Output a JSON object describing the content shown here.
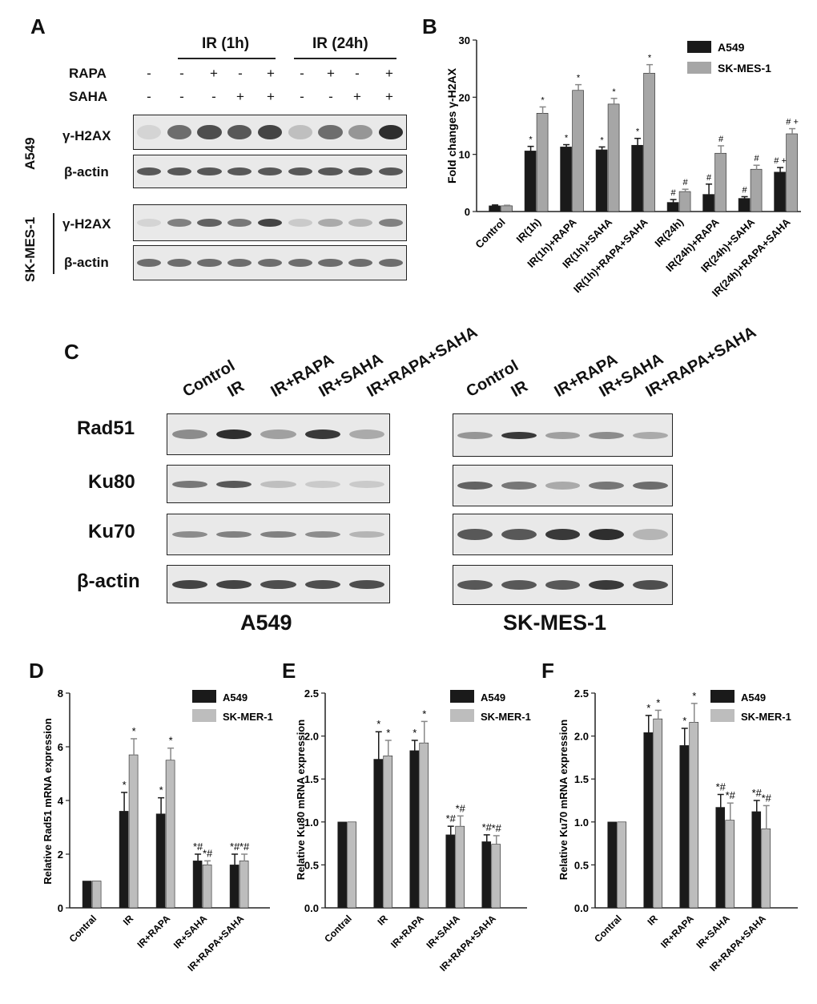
{
  "panel_letters": {
    "A": "A",
    "B": "B",
    "C": "C",
    "D": "D",
    "E": "E",
    "F": "F"
  },
  "panelA": {
    "ir1": "IR (1h)",
    "ir24": "IR (24h)",
    "rapa_label": "RAPA",
    "saha_label": "SAHA",
    "rapa": [
      "-",
      "-",
      "+",
      "-",
      "+",
      "-",
      "+",
      "-",
      "+"
    ],
    "saha": [
      "-",
      "-",
      "-",
      "+",
      "+",
      "-",
      "-",
      "+",
      "+"
    ],
    "cell_a549": "A549",
    "cell_skmes": "SK-MES-1",
    "gh2ax": "γ-H2AX",
    "bactin": "β-actin"
  },
  "panelC": {
    "labels": [
      "Control",
      "IR",
      "IR+RAPA",
      "IR+SAHA",
      "IR+RAPA+SAHA"
    ],
    "rows": [
      "Rad51",
      "Ku80",
      "Ku70",
      "β-actin"
    ],
    "cell_a549": "A549",
    "cell_skmes": "SK-MES-1"
  },
  "chart_data": [
    {
      "type": "bar",
      "categories": [
        "Control",
        "IR(1h)",
        "IR(1h)+RAPA",
        "IR(1h)+SAHA",
        "IR(1h)+RAPA+SAHA",
        "IR(24h)",
        "IR(24h)+RAPA",
        "IR(24h)+SAHA",
        "IR(24h)+RAPA+SAHA"
      ],
      "series": [
        {
          "name": "A549",
          "values": [
            1,
            10.6,
            11.3,
            10.8,
            11.6,
            1.6,
            3.0,
            2.3,
            6.9
          ],
          "errors": [
            0.15,
            0.8,
            0.4,
            0.5,
            1.2,
            0.5,
            1.8,
            0.3,
            0.8
          ],
          "color": "#1a1a1a",
          "annot": [
            "",
            "*",
            "*",
            "*",
            "*",
            "#",
            "#",
            "#",
            "# +"
          ]
        },
        {
          "name": "SK-MES-1",
          "values": [
            1,
            17.2,
            21.2,
            18.8,
            24.2,
            3.5,
            10.2,
            7.4,
            13.6
          ],
          "errors": [
            0.1,
            1.1,
            1.0,
            1.0,
            1.5,
            0.4,
            1.3,
            0.7,
            0.9
          ],
          "color": "#a6a6a6",
          "annot": [
            "",
            "*",
            "*",
            "*",
            "*",
            "#",
            "#",
            "#",
            "# +"
          ]
        }
      ],
      "ylabel": "Fold changes γ-H2AX",
      "ylim": [
        0,
        30
      ],
      "yticks": [
        0,
        10,
        20,
        30
      ]
    },
    {
      "type": "bar",
      "categories": [
        "Contral",
        "IR",
        "IR+RAPA",
        "IR+SAHA",
        "IR+RAPA+SAHA"
      ],
      "series": [
        {
          "name": "A549",
          "values": [
            1.0,
            3.6,
            3.5,
            1.75,
            1.6
          ],
          "errors": [
            0,
            0.7,
            0.6,
            0.25,
            0.4
          ],
          "color": "#1a1a1a",
          "annot": [
            "",
            "*",
            "*",
            "*#",
            "*#"
          ]
        },
        {
          "name": "SK-MER-1",
          "values": [
            1.0,
            5.7,
            5.5,
            1.6,
            1.75
          ],
          "errors": [
            0,
            0.6,
            0.45,
            0.15,
            0.25
          ],
          "color": "#bdbdbd",
          "annot": [
            "",
            "*",
            "*",
            "*#",
            "*#"
          ]
        }
      ],
      "ylabel": "Relative Rad51 mRNA expression",
      "ylim": [
        0,
        8
      ],
      "yticks": [
        0,
        2,
        4,
        6,
        8
      ]
    },
    {
      "type": "bar",
      "categories": [
        "Contral",
        "IR",
        "IR+RAPA",
        "IR+SAHA",
        "IR+RAPA+SAHA"
      ],
      "series": [
        {
          "name": "A549",
          "values": [
            1.0,
            1.73,
            1.83,
            0.85,
            0.77
          ],
          "errors": [
            0,
            0.32,
            0.12,
            0.1,
            0.08
          ],
          "color": "#1a1a1a",
          "annot": [
            "",
            "*",
            "*",
            "*#",
            "*#"
          ]
        },
        {
          "name": "SK-MER-1",
          "values": [
            1.0,
            1.77,
            1.92,
            0.95,
            0.74
          ],
          "errors": [
            0,
            0.18,
            0.25,
            0.12,
            0.1
          ],
          "color": "#bdbdbd",
          "annot": [
            "",
            "*",
            "*",
            "*#",
            "*#"
          ]
        }
      ],
      "ylabel": "Relative Ku80 mRNA expression",
      "ylim": [
        0,
        2.5
      ],
      "yticks": [
        0,
        0.5,
        1.0,
        1.5,
        2.0,
        2.5
      ]
    },
    {
      "type": "bar",
      "categories": [
        "Contral",
        "IR",
        "IR+RAPA",
        "IR+SAHA",
        "IR+RAPA+SAHA"
      ],
      "series": [
        {
          "name": "A549",
          "values": [
            1.0,
            2.04,
            1.89,
            1.17,
            1.12
          ],
          "errors": [
            0,
            0.2,
            0.2,
            0.15,
            0.13
          ],
          "color": "#1a1a1a",
          "annot": [
            "",
            "*",
            "*",
            "*#",
            "*#"
          ]
        },
        {
          "name": "SK-MER-1",
          "values": [
            1.0,
            2.2,
            2.16,
            1.02,
            0.92
          ],
          "errors": [
            0,
            0.1,
            0.22,
            0.2,
            0.27
          ],
          "color": "#bdbdbd",
          "annot": [
            "",
            "*",
            "*",
            "*#",
            "*#"
          ]
        }
      ],
      "ylabel": "Relative Ku70 mRNA expression",
      "ylim": [
        0,
        2.5
      ],
      "yticks": [
        0,
        0.5,
        1.0,
        1.5,
        2.0,
        2.5
      ]
    }
  ]
}
